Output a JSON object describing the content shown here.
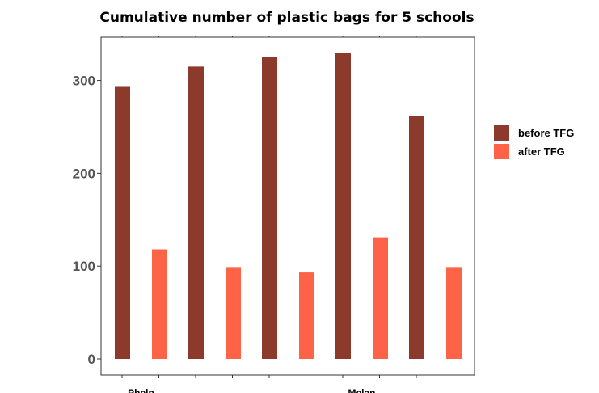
{
  "chart_data": {
    "type": "bar",
    "title": "Cumulative number of plastic bags for 5 schools",
    "xlabel": "",
    "ylabel": "",
    "ylim": [
      0,
      340
    ],
    "yticks": [
      0,
      100,
      200,
      300
    ],
    "categories": [
      "Phelp",
      "",
      "",
      "Melan",
      ""
    ],
    "series": [
      {
        "name": "before TFG",
        "color": "#8B3A2B",
        "values": [
          294,
          315,
          325,
          330,
          262
        ]
      },
      {
        "name": "after TFG",
        "color": "#FF6347",
        "values": [
          118,
          99,
          94,
          131,
          99
        ]
      }
    ],
    "grid": false,
    "legend": "right"
  }
}
